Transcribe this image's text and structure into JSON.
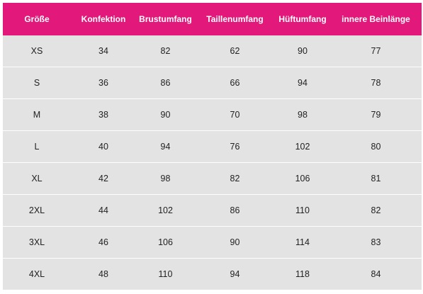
{
  "colors": {
    "header_background": "#e2197b",
    "header_text": "#ffffff",
    "row_background": "#e3e3e3"
  },
  "table": {
    "headers": [
      "Größe",
      "Konfektion",
      "Brustumfang",
      "Taillenumfang",
      "Hüftumfang",
      "innere Beinlänge"
    ],
    "rows": [
      [
        "XS",
        "34",
        "82",
        "62",
        "90",
        "77"
      ],
      [
        "S",
        "36",
        "86",
        "66",
        "94",
        "78"
      ],
      [
        "M",
        "38",
        "90",
        "70",
        "98",
        "79"
      ],
      [
        "L",
        "40",
        "94",
        "76",
        "102",
        "80"
      ],
      [
        "XL",
        "42",
        "98",
        "82",
        "106",
        "81"
      ],
      [
        "2XL",
        "44",
        "102",
        "86",
        "110",
        "82"
      ],
      [
        "3XL",
        "46",
        "106",
        "90",
        "114",
        "83"
      ],
      [
        "4XL",
        "48",
        "110",
        "94",
        "118",
        "84"
      ]
    ]
  }
}
